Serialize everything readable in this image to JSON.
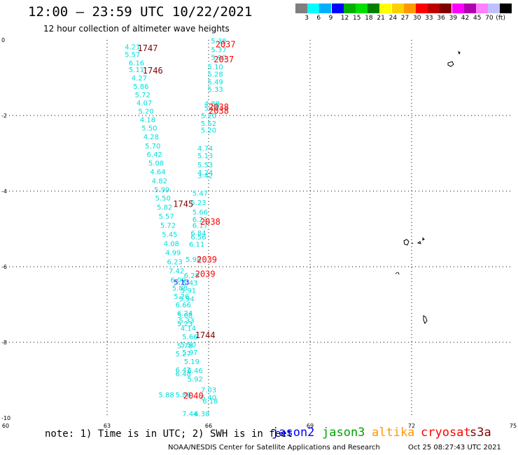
{
  "header": {
    "title": "12:00 – 23:59 UTC 10/22/2021",
    "subtitle": "12 hour collection of altimeter wave heights"
  },
  "colorbar": {
    "colors": [
      "#7f7f7f",
      "#00ffff",
      "#00b0ff",
      "#0000ff",
      "#00b000",
      "#00e000",
      "#008000",
      "#ffff00",
      "#ffd000",
      "#ff9900",
      "#ff0000",
      "#c00000",
      "#800000",
      "#ff00ff",
      "#b000b0",
      "#ff80ff",
      "#c0c0ff",
      "#000000"
    ],
    "labels": [
      "3",
      "6",
      "9",
      "12",
      "15",
      "18",
      "21",
      "24",
      "27",
      "30",
      "33",
      "36",
      "39",
      "42",
      "45",
      "70",
      "(ft)"
    ]
  },
  "footer": {
    "note": "note: 1) Time is in UTC; 2) SWH is in feet",
    "missions": [
      {
        "name": "jason2",
        "color": "#0000ff"
      },
      {
        "name": "jason3",
        "color": "#00a000"
      },
      {
        "name": "altika",
        "color": "#ff9900"
      },
      {
        "name": "cryosat",
        "color": "#ff0000"
      },
      {
        "name": "s3a",
        "color": "#800000"
      }
    ],
    "credit": "NOAA/NESDIS Center for Satellite Applications and Research",
    "timestamp": "Oct 25 08:27:43 UTC 2021"
  },
  "chart_data": {
    "type": "scatter",
    "xlim": [
      60,
      75
    ],
    "ylim": [
      -10,
      0
    ],
    "x_ticks": [
      60,
      63,
      66,
      69,
      72,
      75
    ],
    "y_ticks": [
      0,
      -2,
      -4,
      -6,
      -8,
      -10
    ],
    "grid": true,
    "point_color": "#00dddd",
    "points": [
      {
        "x": 63.75,
        "y": -0.18,
        "label": "4.21"
      },
      {
        "x": 63.75,
        "y": -0.38,
        "label": "5.57"
      },
      {
        "x": 63.87,
        "y": -0.6,
        "label": "6.16"
      },
      {
        "x": 63.87,
        "y": -0.78,
        "label": "5.11"
      },
      {
        "x": 63.95,
        "y": -1.0,
        "label": "4.27"
      },
      {
        "x": 64.0,
        "y": -1.22,
        "label": "5.86"
      },
      {
        "x": 64.05,
        "y": -1.44,
        "label": "5.72"
      },
      {
        "x": 64.1,
        "y": -1.66,
        "label": "4.07"
      },
      {
        "x": 64.15,
        "y": -1.88,
        "label": "5.20"
      },
      {
        "x": 64.2,
        "y": -2.1,
        "label": "4.18"
      },
      {
        "x": 64.25,
        "y": -2.32,
        "label": "5.50"
      },
      {
        "x": 64.3,
        "y": -2.56,
        "label": "4.28"
      },
      {
        "x": 64.35,
        "y": -2.8,
        "label": "5.70"
      },
      {
        "x": 64.4,
        "y": -3.02,
        "label": "6.42"
      },
      {
        "x": 64.45,
        "y": -3.25,
        "label": "5.08"
      },
      {
        "x": 64.5,
        "y": -3.48,
        "label": "4.64"
      },
      {
        "x": 64.55,
        "y": -3.72,
        "label": "4.82"
      },
      {
        "x": 64.62,
        "y": -3.95,
        "label": "5.99"
      },
      {
        "x": 64.65,
        "y": -4.18,
        "label": "5.50"
      },
      {
        "x": 64.7,
        "y": -4.42,
        "label": "5.82"
      },
      {
        "x": 64.75,
        "y": -4.66,
        "label": "5.57"
      },
      {
        "x": 64.8,
        "y": -4.9,
        "label": "5.72"
      },
      {
        "x": 64.85,
        "y": -5.14,
        "label": "5.45"
      },
      {
        "x": 64.9,
        "y": -5.38,
        "label": "4.08"
      },
      {
        "x": 64.95,
        "y": -5.62,
        "label": "4.99"
      },
      {
        "x": 65.0,
        "y": -5.86,
        "label": "6.23"
      },
      {
        "x": 65.05,
        "y": -6.1,
        "label": "7.42"
      },
      {
        "x": 65.1,
        "y": -6.34,
        "label": "6.09"
      },
      {
        "x": 65.15,
        "y": -6.56,
        "label": "5.88"
      },
      {
        "x": 65.2,
        "y": -6.78,
        "label": "5.26"
      },
      {
        "x": 65.25,
        "y": -7.0,
        "label": "6.66"
      },
      {
        "x": 65.3,
        "y": -7.22,
        "label": "6.24"
      },
      {
        "x": 65.35,
        "y": -7.42,
        "label": "5.33"
      },
      {
        "x": 65.4,
        "y": -7.62,
        "label": "4.14"
      },
      {
        "x": 65.45,
        "y": -7.84,
        "label": "5.66"
      },
      {
        "x": 65.3,
        "y": -8.08,
        "label": "5.78"
      },
      {
        "x": 65.25,
        "y": -8.3,
        "label": "5.27"
      },
      {
        "x": 65.5,
        "y": -8.5,
        "label": "5.19"
      },
      {
        "x": 65.25,
        "y": -8.72,
        "label": "6.42"
      },
      {
        "x": 65.25,
        "y": -8.82,
        "label": "6.48"
      },
      {
        "x": 65.6,
        "y": -8.74,
        "label": "6.46"
      },
      {
        "x": 65.6,
        "y": -8.96,
        "label": "5.92"
      },
      {
        "x": 64.75,
        "y": -9.38,
        "label": "5.88"
      },
      {
        "x": 65.25,
        "y": -9.38,
        "label": "5.88"
      },
      {
        "x": 65.45,
        "y": -9.88,
        "label": "7.44"
      },
      {
        "x": 65.8,
        "y": -9.88,
        "label": "6.38"
      },
      {
        "x": 66.3,
        "y": -0.02,
        "label": "5.38"
      },
      {
        "x": 66.3,
        "y": -0.25,
        "label": "5.37"
      },
      {
        "x": 66.3,
        "y": -0.45,
        "label": "5.90"
      },
      {
        "x": 66.2,
        "y": -0.7,
        "label": "5.10"
      },
      {
        "x": 66.2,
        "y": -0.9,
        "label": "5.28"
      },
      {
        "x": 66.2,
        "y": -1.1,
        "label": "5.49"
      },
      {
        "x": 66.2,
        "y": -1.3,
        "label": "5.33"
      },
      {
        "x": 66.1,
        "y": -1.68,
        "label": "4.88"
      },
      {
        "x": 66.1,
        "y": -1.8,
        "label": "5.07"
      },
      {
        "x": 66.0,
        "y": -2.0,
        "label": "5.20"
      },
      {
        "x": 66.0,
        "y": -2.2,
        "label": "5.52"
      },
      {
        "x": 66.0,
        "y": -2.38,
        "label": "5.20"
      },
      {
        "x": 65.9,
        "y": -2.86,
        "label": "4.74"
      },
      {
        "x": 65.9,
        "y": -3.06,
        "label": "5.13"
      },
      {
        "x": 65.9,
        "y": -3.3,
        "label": "5.53"
      },
      {
        "x": 65.9,
        "y": -3.5,
        "label": "4.24"
      },
      {
        "x": 65.9,
        "y": -3.58,
        "label": "3.42"
      },
      {
        "x": 65.75,
        "y": -4.05,
        "label": "5.47"
      },
      {
        "x": 65.7,
        "y": -4.3,
        "label": "5.23"
      },
      {
        "x": 65.75,
        "y": -4.55,
        "label": "5.66"
      },
      {
        "x": 65.75,
        "y": -4.74,
        "label": "6.21"
      },
      {
        "x": 65.75,
        "y": -4.9,
        "label": "6.17"
      },
      {
        "x": 65.7,
        "y": -5.1,
        "label": "6.84"
      },
      {
        "x": 65.7,
        "y": -5.2,
        "label": "6.56"
      },
      {
        "x": 65.65,
        "y": -5.4,
        "label": "6.11"
      },
      {
        "x": 65.55,
        "y": -5.8,
        "label": "5.98"
      },
      {
        "x": 65.5,
        "y": -6.22,
        "label": "6.28"
      },
      {
        "x": 65.45,
        "y": -6.42,
        "label": "5.43"
      },
      {
        "x": 65.4,
        "y": -6.62,
        "label": "5.91"
      },
      {
        "x": 65.35,
        "y": -6.84,
        "label": "5.94"
      },
      {
        "x": 65.3,
        "y": -7.28,
        "label": "5.08"
      },
      {
        "x": 65.3,
        "y": -7.5,
        "label": "5.23"
      },
      {
        "x": 65.4,
        "y": -8.06,
        "label": "5.50"
      },
      {
        "x": 65.45,
        "y": -8.26,
        "label": "5.97"
      },
      {
        "x": 66.0,
        "y": -9.25,
        "label": "7.03"
      },
      {
        "x": 66.0,
        "y": -9.45,
        "label": "6.40"
      },
      {
        "x": 66.05,
        "y": -9.55,
        "label": "6.18"
      }
    ],
    "jason2_points": [
      {
        "x": 65.2,
        "y": -6.4,
        "label": "5.13"
      }
    ],
    "passes": [
      {
        "mission": "s3a",
        "time": "1747",
        "x": 64.2,
        "y": -0.2
      },
      {
        "mission": "s3a",
        "time": "1746",
        "x": 64.35,
        "y": -0.8
      },
      {
        "mission": "s3a",
        "time": "1745",
        "x": 65.25,
        "y": -4.32
      },
      {
        "mission": "s3a",
        "time": "1744",
        "x": 65.9,
        "y": -7.8
      },
      {
        "mission": "cryosat",
        "time": "2037",
        "x": 66.5,
        "y": -0.1
      },
      {
        "mission": "cryosat",
        "time": "2037",
        "x": 66.45,
        "y": -0.5
      },
      {
        "mission": "cryosat",
        "time": "2038",
        "x": 66.3,
        "y": -1.76
      },
      {
        "mission": "cryosat",
        "time": "2038",
        "x": 66.3,
        "y": -1.86
      },
      {
        "mission": "cryosat",
        "time": "2038",
        "x": 66.05,
        "y": -4.8
      },
      {
        "mission": "cryosat",
        "time": "2039",
        "x": 65.95,
        "y": -5.8
      },
      {
        "mission": "cryosat",
        "time": "2039",
        "x": 65.9,
        "y": -6.18
      },
      {
        "mission": "cryosat",
        "time": "2040",
        "x": 65.55,
        "y": -9.4
      }
    ]
  }
}
